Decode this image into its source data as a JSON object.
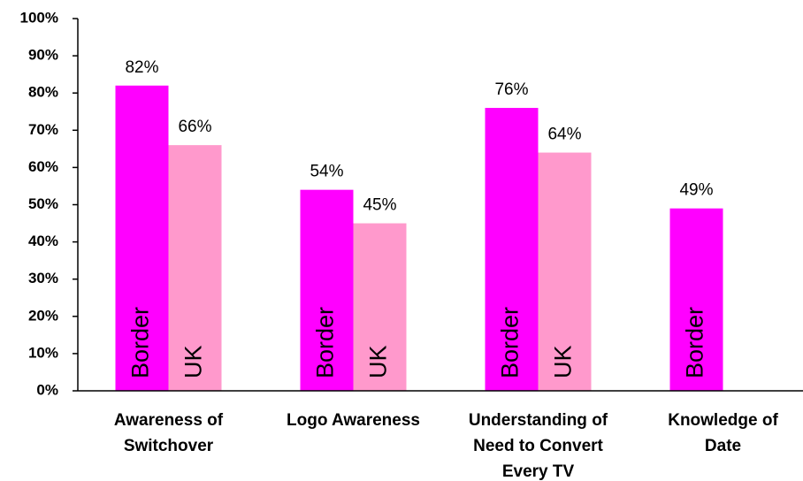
{
  "chart_data": {
    "type": "bar",
    "categories": [
      "Awareness of Switchover",
      "Logo Awareness",
      "Understanding of Need to Convert Every TV",
      "Knowledge of Date"
    ],
    "series": [
      {
        "name": "Border",
        "color": "#ff00ff",
        "values": [
          82,
          54,
          76,
          49
        ],
        "value_labels": [
          "82%",
          "54%",
          "76%",
          "49%"
        ]
      },
      {
        "name": "UK",
        "color": "#ff99cc",
        "values": [
          66,
          45,
          64,
          null
        ],
        "value_labels": [
          "66%",
          "45%",
          "64%",
          null
        ]
      }
    ],
    "ylim": [
      0,
      100
    ],
    "yticks": [
      {
        "value": 0,
        "label": "0%"
      },
      {
        "value": 10,
        "label": "10%"
      },
      {
        "value": 20,
        "label": "20%"
      },
      {
        "value": 30,
        "label": "30%"
      },
      {
        "value": 40,
        "label": "40%"
      },
      {
        "value": 50,
        "label": "50%"
      },
      {
        "value": 60,
        "label": "60%"
      },
      {
        "value": 70,
        "label": "70%"
      },
      {
        "value": 80,
        "label": "80%"
      },
      {
        "value": 90,
        "label": "90%"
      },
      {
        "value": 100,
        "label": "100%"
      }
    ],
    "grid": false
  }
}
